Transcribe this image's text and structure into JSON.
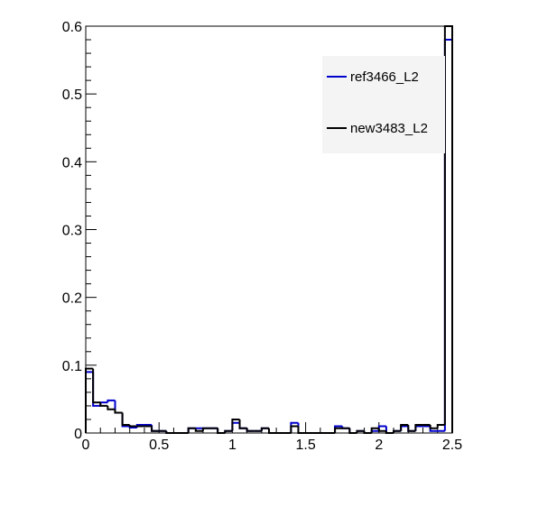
{
  "chart_data": {
    "type": "histogram",
    "title": "",
    "xlabel": "",
    "ylabel": "",
    "xlim": [
      0,
      2.5
    ],
    "ylim": [
      0,
      0.6
    ],
    "bin_width": 0.05,
    "x_ticks": [
      "0",
      "0.5",
      "1",
      "1.5",
      "2",
      "2.5"
    ],
    "y_ticks": [
      "0",
      "0.1",
      "0.2",
      "0.3",
      "0.4",
      "0.5",
      "0.6"
    ],
    "legend_position": "top-right",
    "grid": false,
    "series": [
      {
        "name": "ref3466_L2",
        "color": "#0000cc",
        "values": [
          0.09,
          0.04,
          0.045,
          0.048,
          0.03,
          0.01,
          0.008,
          0.012,
          0.012,
          0.003,
          0.003,
          0.0,
          0.0,
          0.0,
          0.007,
          0.007,
          0.007,
          0.007,
          0.0,
          0.003,
          0.015,
          0.007,
          0.003,
          0.003,
          0.007,
          0.0,
          0.0,
          0.0,
          0.015,
          0.0,
          0.0,
          0.0,
          0.0,
          0.0,
          0.01,
          0.007,
          0.0,
          0.003,
          0.0,
          0.003,
          0.01,
          0.0,
          0.003,
          0.01,
          0.003,
          0.01,
          0.01,
          0.003,
          0.003,
          0.58
        ]
      },
      {
        "name": "new3483_L2",
        "color": "#000000",
        "values": [
          0.095,
          0.045,
          0.04,
          0.035,
          0.03,
          0.012,
          0.01,
          0.01,
          0.01,
          0.003,
          0.003,
          0.0,
          0.0,
          0.0,
          0.007,
          0.003,
          0.007,
          0.007,
          0.0,
          0.003,
          0.02,
          0.007,
          0.003,
          0.003,
          0.007,
          0.0,
          0.0,
          0.0,
          0.01,
          0.0,
          0.0,
          0.0,
          0.0,
          0.0,
          0.007,
          0.007,
          0.0,
          0.003,
          0.0,
          0.007,
          0.003,
          0.0,
          0.003,
          0.012,
          0.003,
          0.012,
          0.012,
          0.007,
          0.012,
          0.6
        ]
      }
    ]
  }
}
